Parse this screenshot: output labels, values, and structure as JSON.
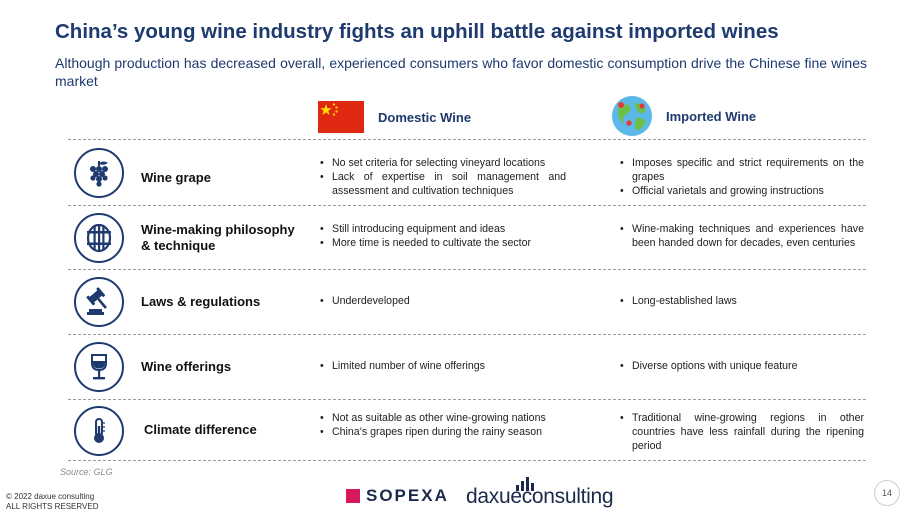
{
  "title": "China’s young wine industry fights an uphill battle against imported wines",
  "subtitle": "Although production has decreased overall, experienced consumers who favor domestic consumption drive the Chinese fine wines market",
  "columns": {
    "domestic": {
      "label": "Domestic Wine",
      "icon": "china-flag-icon"
    },
    "imported": {
      "label": "Imported Wine",
      "icon": "globe-icon"
    }
  },
  "rows": [
    {
      "label": "Wine grape",
      "icon": "grape-icon",
      "domestic": [
        "No set criteria for selecting vineyard locations",
        "Lack of expertise in soil management and assessment and cultivation techniques"
      ],
      "imported": [
        "Imposes specific and strict requirements on the grapes",
        "Official varietals and growing instructions"
      ]
    },
    {
      "label": "Wine-making philosophy & technique",
      "icon": "barrel-icon",
      "domestic": [
        "Still introducing equipment and ideas",
        "More time is needed to cultivate the sector"
      ],
      "imported": [
        "Wine-making techniques and experiences have been handed down for decades, even centuries"
      ]
    },
    {
      "label": "Laws & regulations",
      "icon": "gavel-icon",
      "domestic": [
        "Underdeveloped"
      ],
      "imported": [
        "Long-established laws"
      ]
    },
    {
      "label": "Wine offerings",
      "icon": "wine-glass-icon",
      "domestic": [
        "Limited number of wine offerings"
      ],
      "imported": [
        "Diverse options with unique feature"
      ]
    },
    {
      "label": "Climate difference",
      "icon": "thermometer-icon",
      "domestic": [
        "Not as suitable as other wine-growing nations",
        "China’s grapes ripen during the rainy season"
      ],
      "imported": [
        "Traditional wine-growing regions in other countries have less rainfall during the ripening period"
      ]
    }
  ],
  "source": "Source: GLG",
  "copyright": {
    "line1": "© 2022 daxue consulting",
    "line2": "ALL RIGHTS RESERVED"
  },
  "logos": {
    "sopexa": "SOPEXA",
    "daxue": "daxueconsulting"
  },
  "page_number": "14",
  "colors": {
    "navy": "#1e3a6e",
    "flag_red": "#de2910",
    "flag_yellow": "#ffde00",
    "sopexa_pink": "#d7185e"
  }
}
